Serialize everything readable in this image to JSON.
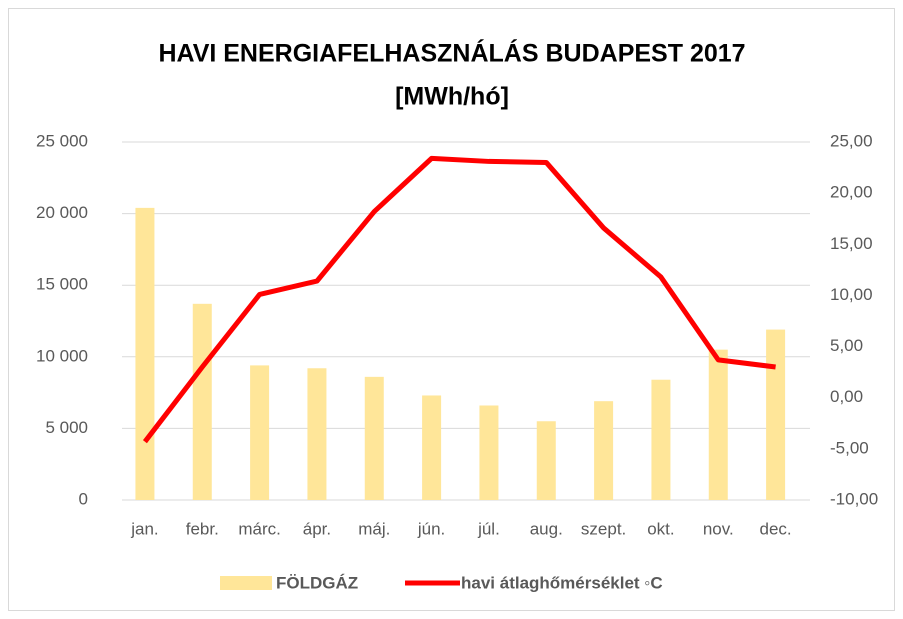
{
  "chart_data": {
    "type": "bar-line",
    "title": [
      "HAVI ENERGIAFELHASZNÁLÁS BUDAPEST 2017",
      "[MWh/hó]"
    ],
    "categories": [
      "jan.",
      "febr.",
      "márc.",
      "ápr.",
      "máj.",
      "jún.",
      "júl.",
      "aug.",
      "szept.",
      "okt.",
      "nov.",
      "dec."
    ],
    "series": [
      {
        "name": "FÖLDGÁZ",
        "type": "bar",
        "color": "#ffe699",
        "values": [
          20400,
          13700,
          9400,
          9200,
          8600,
          7300,
          6600,
          5500,
          6900,
          8400,
          10500,
          11900
        ]
      },
      {
        "name": "havi átlaghőmérséklet ◦C",
        "type": "line",
        "axis": "y2",
        "color": "#ff0000",
        "values": [
          -4.3,
          3.0,
          10.1,
          11.4,
          18.2,
          23.4,
          23.1,
          23.0,
          16.6,
          11.8,
          3.7,
          3.0
        ]
      }
    ],
    "ylim": [
      0,
      25000
    ],
    "yticks": [
      0,
      {
        "value": 5000,
        "label": "5 000"
      },
      {
        "value": 10000,
        "label": "10 000"
      },
      {
        "value": 15000,
        "label": "15 000"
      },
      {
        "value": 20000,
        "label": "20 000"
      },
      {
        "value": 25000,
        "label": "25 000"
      }
    ],
    "y2lim": [
      -10,
      25
    ],
    "y2ticks": [
      {
        "value": -10,
        "label": "-10,00"
      },
      {
        "value": -5,
        "label": "-5,00"
      },
      {
        "value": 0,
        "label": "0,00"
      },
      {
        "value": 5,
        "label": "5,00"
      },
      {
        "value": 10,
        "label": "10,00"
      },
      {
        "value": 15,
        "label": "15,00"
      },
      {
        "value": 20,
        "label": "20,00"
      },
      {
        "value": 25,
        "label": "25,00"
      }
    ],
    "grid": true,
    "legend": "bottom"
  }
}
